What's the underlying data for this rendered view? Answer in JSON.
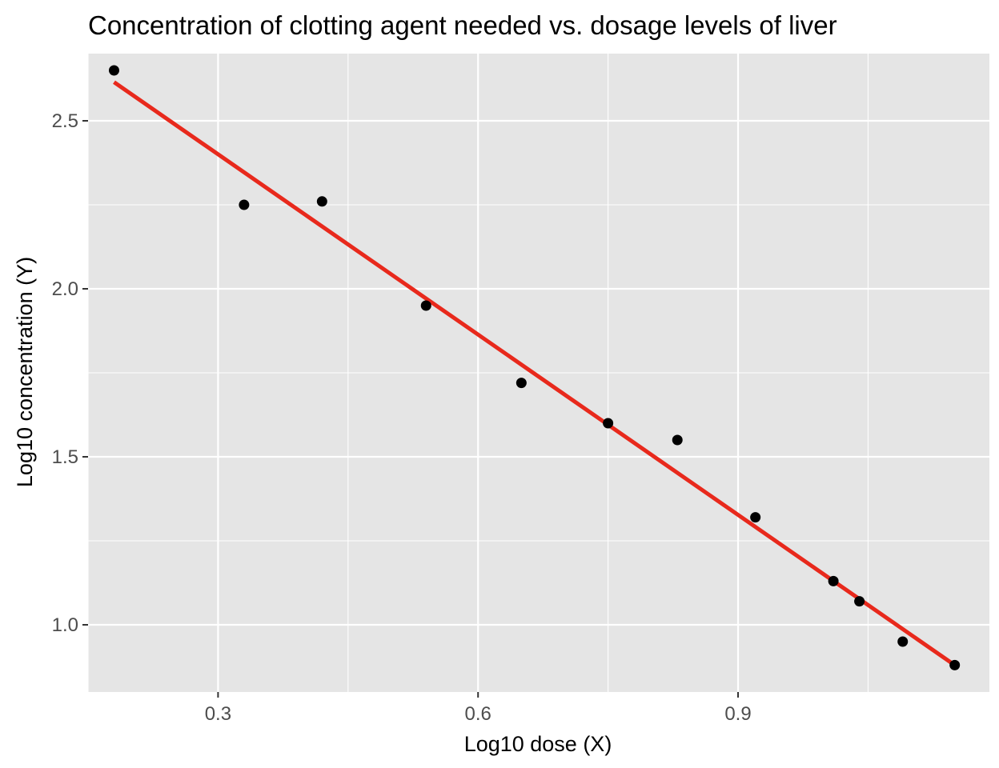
{
  "chart_data": {
    "type": "scatter",
    "title": "Concentration of clotting agent needed vs. dosage levels of liver",
    "xlabel": "Log10 dose (X)",
    "ylabel": "Log10 concentration (Y)",
    "xlim": [
      0.15,
      1.19
    ],
    "ylim": [
      0.8,
      2.7
    ],
    "x_ticks": [
      {
        "value": 0.3,
        "label": "0.3"
      },
      {
        "value": 0.6,
        "label": "0.6"
      },
      {
        "value": 0.9,
        "label": "0.9"
      }
    ],
    "y_ticks": [
      {
        "value": 1.0,
        "label": "1.0"
      },
      {
        "value": 1.5,
        "label": "1.5"
      },
      {
        "value": 2.0,
        "label": "2.0"
      },
      {
        "value": 2.5,
        "label": "2.5"
      }
    ],
    "points": [
      {
        "x": 0.18,
        "y": 2.65
      },
      {
        "x": 0.33,
        "y": 2.25
      },
      {
        "x": 0.42,
        "y": 2.26
      },
      {
        "x": 0.54,
        "y": 1.95
      },
      {
        "x": 0.65,
        "y": 1.72
      },
      {
        "x": 0.75,
        "y": 1.6
      },
      {
        "x": 0.83,
        "y": 1.55
      },
      {
        "x": 0.92,
        "y": 1.32
      },
      {
        "x": 1.01,
        "y": 1.13
      },
      {
        "x": 1.04,
        "y": 1.07
      },
      {
        "x": 1.09,
        "y": 0.95
      },
      {
        "x": 1.15,
        "y": 0.88
      }
    ],
    "fit_line": {
      "x": [
        0.18,
        1.15
      ],
      "y": [
        2.615,
        0.88
      ],
      "color": "#e8291c"
    },
    "point_color": "#000000",
    "panel_background": "#e5e5e5",
    "grid": true,
    "grid_color": "#ffffff"
  }
}
